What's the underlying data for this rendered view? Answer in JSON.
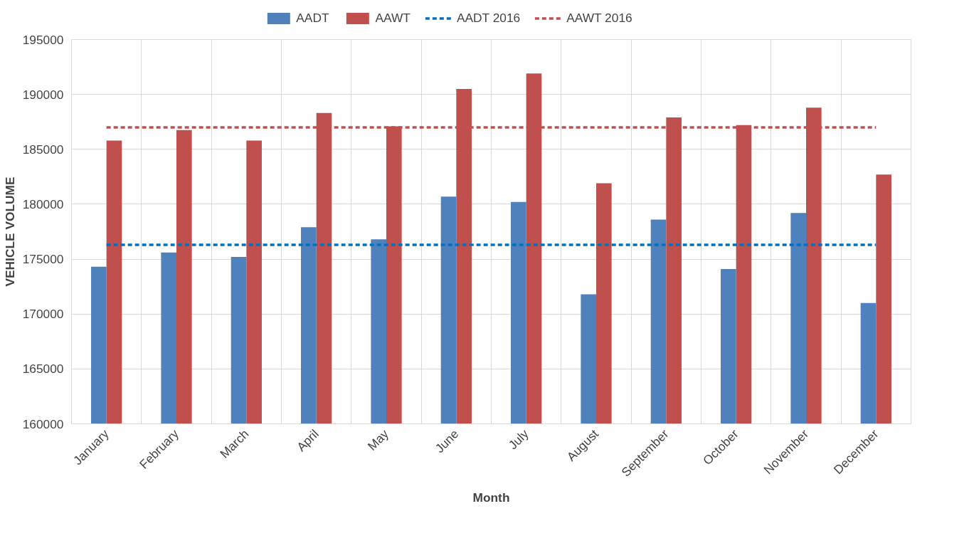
{
  "chart_data": {
    "type": "bar",
    "xlabel": "Month",
    "ylabel": "VEHICLE VOLUME",
    "categories": [
      "January",
      "February",
      "March",
      "April",
      "May",
      "June",
      "July",
      "August",
      "September",
      "October",
      "November",
      "December"
    ],
    "series": [
      {
        "name": "AADT",
        "color": "#4f81bd",
        "values": [
          174300,
          175600,
          175200,
          177900,
          176800,
          180700,
          180200,
          171800,
          178600,
          174100,
          179200,
          171000
        ]
      },
      {
        "name": "AAWT",
        "color": "#c0504d",
        "values": [
          185800,
          186750,
          185800,
          188300,
          187100,
          190500,
          191900,
          181900,
          187900,
          187200,
          188800,
          182700
        ]
      },
      {
        "name": "AADT 2016",
        "type": "line",
        "line_style": "dashed",
        "color": "#0070c0",
        "values": [
          176300,
          176300,
          176300,
          176300,
          176300,
          176300,
          176300,
          176300,
          176300,
          176300,
          176300,
          176300
        ]
      },
      {
        "name": "AAWT 2016",
        "type": "line",
        "line_style": "dashed",
        "color": "#c0504d",
        "values": [
          187000,
          187000,
          187000,
          187000,
          187000,
          187000,
          187000,
          187000,
          187000,
          187000,
          187000,
          187000
        ]
      }
    ],
    "ylim": [
      160000,
      195000
    ],
    "yticks": [
      160000,
      165000,
      170000,
      175000,
      180000,
      185000,
      190000,
      195000
    ],
    "grid": true,
    "legend": "top",
    "marker": "none"
  }
}
